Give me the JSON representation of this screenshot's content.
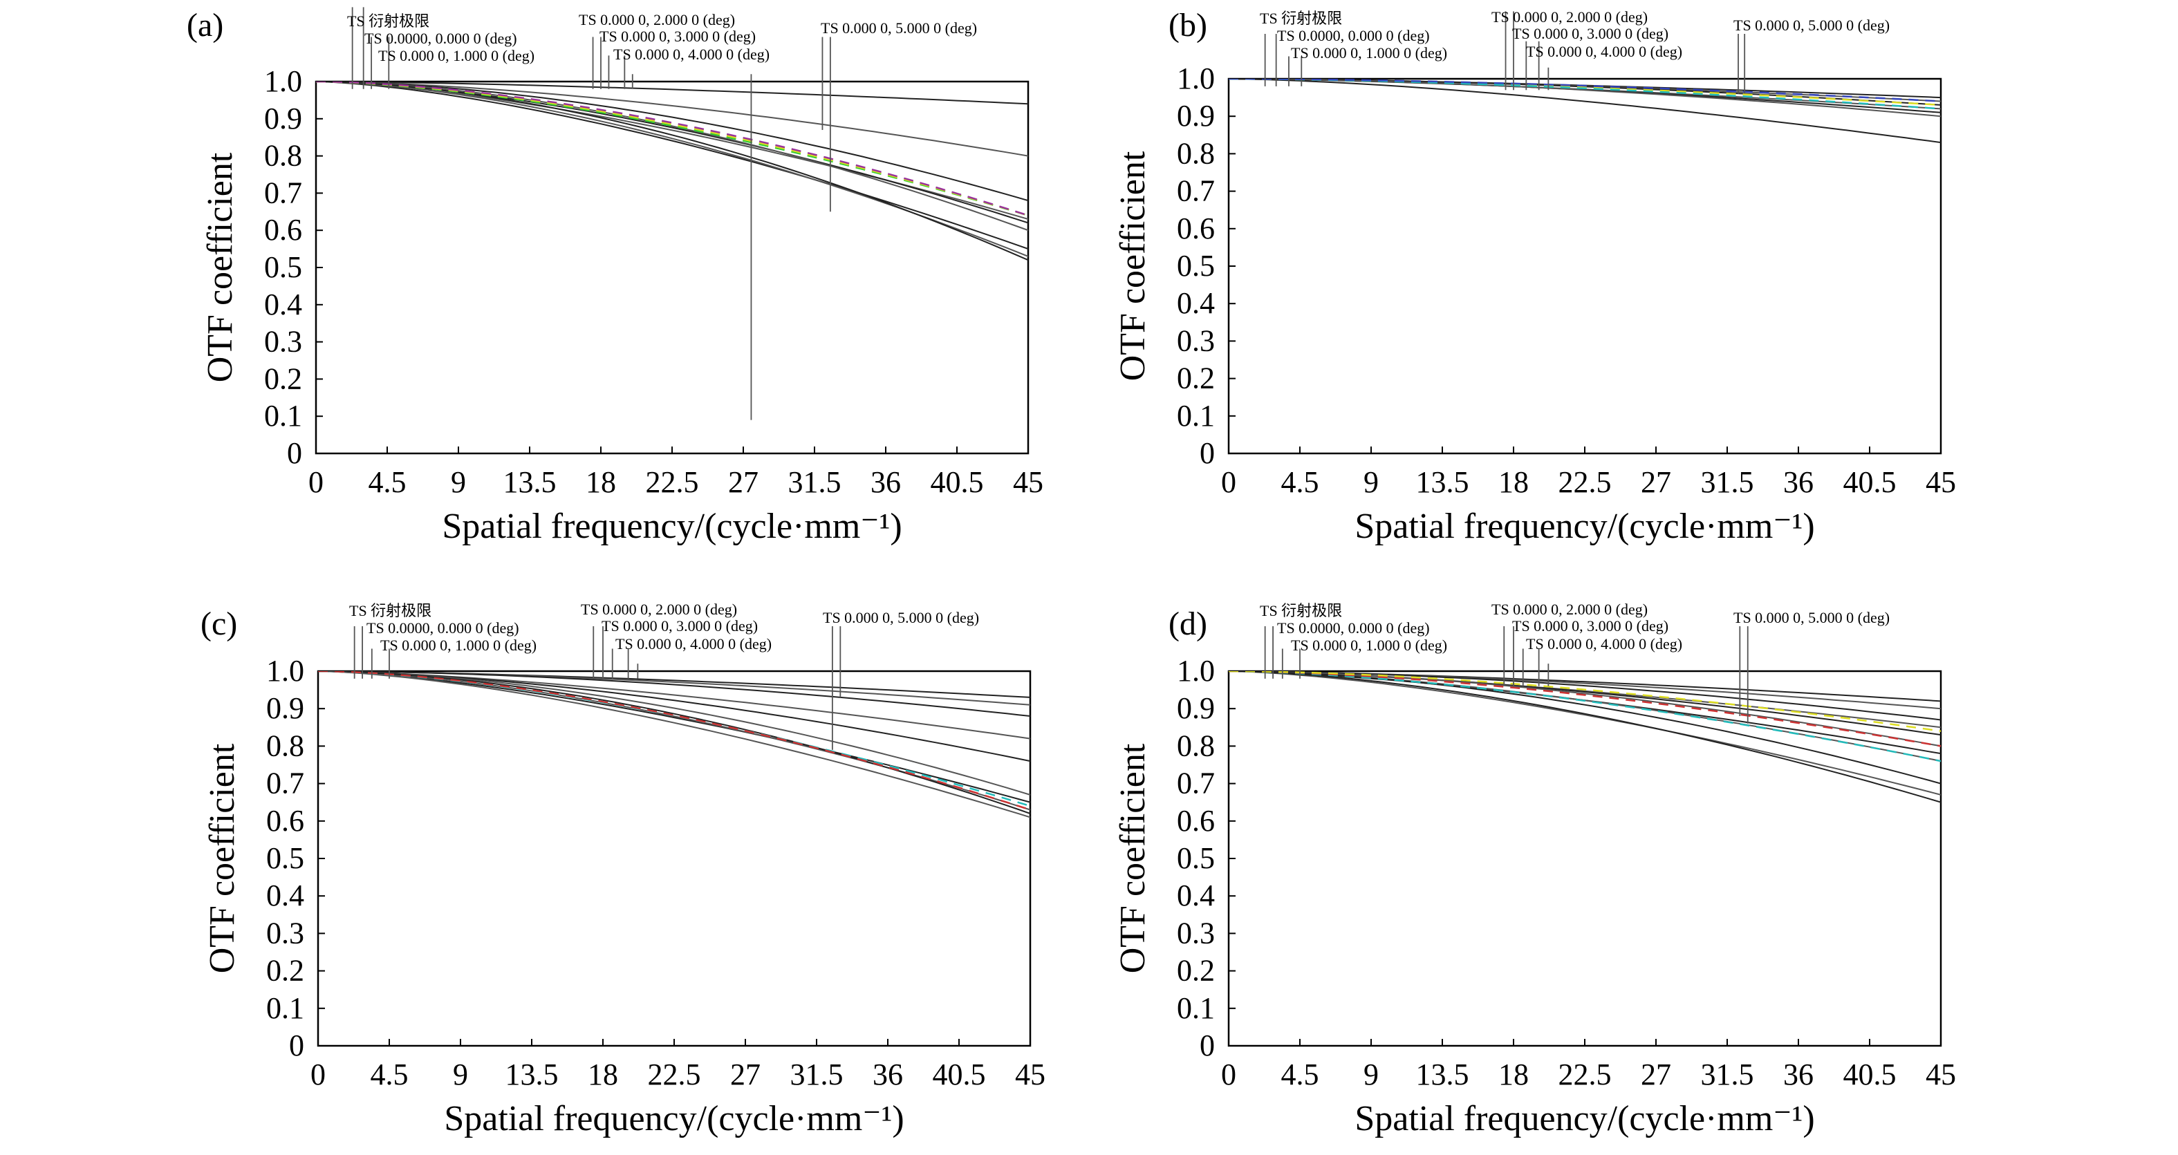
{
  "figure": {
    "annotation_labels": [
      "TS 衍射极限",
      "TS 0.0000, 0.000 0 (deg)",
      "TS 0.000 0, 1.000 0 (deg)",
      "TS 0.000 0, 2.000 0 (deg)",
      "TS 0.000 0, 3.000 0 (deg)",
      "TS 0.000 0, 4.000 0 (deg)",
      "TS 0.000 0, 5.000 0 (deg)"
    ],
    "colors": {
      "axis": "#000000",
      "curve_gray": "#555555",
      "curve_dark": "#222222",
      "accent_green": "#33cc33",
      "accent_cyan": "#22bbbb",
      "accent_yellow": "#dddd22",
      "accent_purple": "#993399",
      "accent_red": "#cc3333",
      "accent_blue": "#3344bb"
    }
  },
  "chart_data": [
    {
      "panel": "(a)",
      "type": "line",
      "xlabel": "Spatial frequency/(cycle·mm⁻¹)",
      "ylabel": "OTF coefficient",
      "xlim": [
        0,
        45
      ],
      "ylim": [
        0,
        1.0
      ],
      "xticks": [
        "0",
        "4.5",
        "9",
        "13.5",
        "18",
        "22.5",
        "27",
        "31.5",
        "36",
        "40.5",
        "45"
      ],
      "yticks": [
        "0",
        "0.1",
        "0.2",
        "0.3",
        "0.4",
        "0.5",
        "0.6",
        "0.7",
        "0.8",
        "0.9",
        "1.0"
      ],
      "grid": false,
      "endpoints": [
        0.94,
        0.8,
        0.68,
        0.63,
        0.62,
        0.6,
        0.55,
        0.53,
        0.52
      ],
      "accent_curves": [
        {
          "color": "green",
          "end": 0.64
        },
        {
          "color": "yellow",
          "end": 0.64
        },
        {
          "color": "purple",
          "end": 0.64
        }
      ],
      "marker_lines": [
        {
          "x": 2.3,
          "top": 1.2
        },
        {
          "x": 3.0,
          "top": 1.2
        },
        {
          "x": 3.5,
          "top": 1.12
        },
        {
          "x": 4.6,
          "top": 1.12
        },
        {
          "x": 17.5,
          "top": 1.12
        },
        {
          "x": 18.0,
          "top": 1.12
        },
        {
          "x": 18.5,
          "top": 1.07
        },
        {
          "x": 19.5,
          "top": 1.07
        },
        {
          "x": 20.0,
          "top": 1.02
        },
        {
          "x": 27.5,
          "top": 1.02,
          "bottom": 0.09
        },
        {
          "x": 32.0,
          "top": 1.12,
          "bottom": 0.87
        },
        {
          "x": 32.5,
          "top": 1.12,
          "bottom": 0.65
        }
      ]
    },
    {
      "panel": "(b)",
      "type": "line",
      "xlabel": "Spatial frequency/(cycle·mm⁻¹)",
      "ylabel": "OTF coefficient",
      "xlim": [
        0,
        45
      ],
      "ylim": [
        0,
        1.0
      ],
      "xticks": [
        "0",
        "4.5",
        "9",
        "13.5",
        "18",
        "22.5",
        "27",
        "31.5",
        "36",
        "40.5",
        "45"
      ],
      "yticks": [
        "0",
        "0.1",
        "0.2",
        "0.3",
        "0.4",
        "0.5",
        "0.6",
        "0.7",
        "0.8",
        "0.9",
        "1.0"
      ],
      "grid": false,
      "endpoints": [
        0.95,
        0.94,
        0.93,
        0.92,
        0.91,
        0.9,
        0.83
      ],
      "accent_curves": [
        {
          "color": "yellow",
          "end": 0.93
        },
        {
          "color": "cyan",
          "end": 0.92
        },
        {
          "color": "blue",
          "end": 0.94
        }
      ],
      "marker_lines": [
        {
          "x": 2.3,
          "top": 1.12
        },
        {
          "x": 3.0,
          "top": 1.12
        },
        {
          "x": 3.8,
          "top": 1.06
        },
        {
          "x": 4.6,
          "top": 1.06
        },
        {
          "x": 17.5,
          "top": 1.18,
          "bottom": 0.97
        },
        {
          "x": 18.0,
          "top": 1.18,
          "bottom": 0.97
        },
        {
          "x": 18.8,
          "top": 1.1,
          "bottom": 0.97
        },
        {
          "x": 19.6,
          "top": 1.1,
          "bottom": 0.97
        },
        {
          "x": 20.2,
          "top": 1.03,
          "bottom": 0.97
        },
        {
          "x": 32.2,
          "top": 1.12,
          "bottom": 0.96
        },
        {
          "x": 32.6,
          "top": 1.12,
          "bottom": 0.96
        }
      ]
    },
    {
      "panel": "(c)",
      "type": "line",
      "xlabel": "Spatial frequency/(cycle·mm⁻¹)",
      "ylabel": "OTF coefficient",
      "xlim": [
        0,
        45
      ],
      "ylim": [
        0,
        1.0
      ],
      "xticks": [
        "0",
        "4.5",
        "9",
        "13.5",
        "18",
        "22.5",
        "27",
        "31.5",
        "36",
        "40.5",
        "45"
      ],
      "yticks": [
        "0",
        "0.1",
        "0.2",
        "0.3",
        "0.4",
        "0.5",
        "0.6",
        "0.7",
        "0.8",
        "0.9",
        "1.0"
      ],
      "grid": false,
      "endpoints": [
        0.93,
        0.91,
        0.88,
        0.82,
        0.76,
        0.67,
        0.65,
        0.63,
        0.62,
        0.61
      ],
      "accent_curves": [
        {
          "color": "cyan",
          "end": 0.64
        },
        {
          "color": "red",
          "end": 0.63
        }
      ],
      "marker_lines": [
        {
          "x": 2.3,
          "top": 1.12
        },
        {
          "x": 2.8,
          "top": 1.12
        },
        {
          "x": 3.4,
          "top": 1.06
        },
        {
          "x": 4.5,
          "top": 1.06
        },
        {
          "x": 17.4,
          "top": 1.12
        },
        {
          "x": 18.0,
          "top": 1.12
        },
        {
          "x": 18.6,
          "top": 1.06
        },
        {
          "x": 19.6,
          "top": 1.06
        },
        {
          "x": 20.2,
          "top": 1.02
        },
        {
          "x": 32.5,
          "top": 1.12,
          "bottom": 0.79
        },
        {
          "x": 33.0,
          "top": 1.12,
          "bottom": 0.93
        }
      ]
    },
    {
      "panel": "(d)",
      "type": "line",
      "xlabel": "Spatial frequency/(cycle·mm⁻¹)",
      "ylabel": "OTF coefficient",
      "xlim": [
        0,
        45
      ],
      "ylim": [
        0,
        1.0
      ],
      "xticks": [
        "0",
        "4.5",
        "9",
        "13.5",
        "18",
        "22.5",
        "27",
        "31.5",
        "36",
        "40.5",
        "45"
      ],
      "yticks": [
        "0",
        "0.1",
        "0.2",
        "0.3",
        "0.4",
        "0.5",
        "0.6",
        "0.7",
        "0.8",
        "0.9",
        "1.0"
      ],
      "grid": false,
      "endpoints": [
        0.92,
        0.9,
        0.87,
        0.85,
        0.83,
        0.8,
        0.78,
        0.76,
        0.7,
        0.67,
        0.65
      ],
      "accent_curves": [
        {
          "color": "cyan",
          "end": 0.76
        },
        {
          "color": "red",
          "end": 0.8
        },
        {
          "color": "yellow",
          "end": 0.84
        }
      ],
      "marker_lines": [
        {
          "x": 2.3,
          "top": 1.12
        },
        {
          "x": 2.8,
          "top": 1.12
        },
        {
          "x": 3.4,
          "top": 1.06
        },
        {
          "x": 4.5,
          "top": 1.06
        },
        {
          "x": 17.4,
          "top": 1.12,
          "bottom": 0.96
        },
        {
          "x": 18.0,
          "top": 1.12,
          "bottom": 0.96
        },
        {
          "x": 18.6,
          "top": 1.06,
          "bottom": 0.96
        },
        {
          "x": 19.6,
          "top": 1.06,
          "bottom": 0.96
        },
        {
          "x": 20.2,
          "top": 1.02,
          "bottom": 0.96
        },
        {
          "x": 32.3,
          "top": 1.12,
          "bottom": 0.88
        },
        {
          "x": 32.8,
          "top": 1.12,
          "bottom": 0.86
        }
      ]
    }
  ]
}
